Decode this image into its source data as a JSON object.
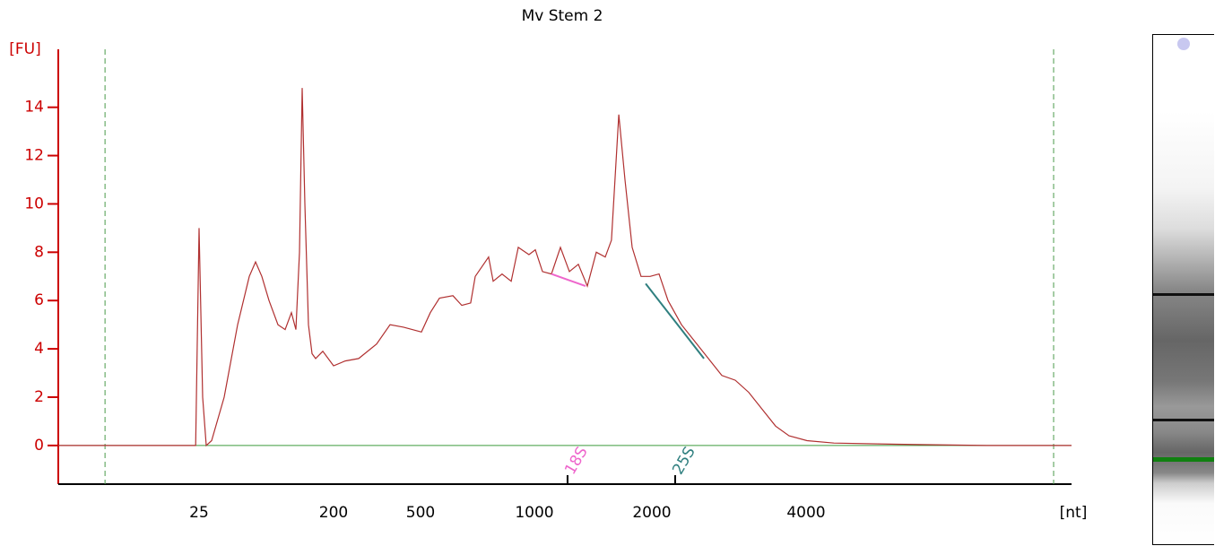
{
  "chart_data": {
    "type": "line",
    "title": "Mv Stem 2",
    "y_label": "[FU]",
    "x_label": "[nt]",
    "x_scale": "piecewise",
    "x": [
      0,
      5.6,
      13.5,
      23.9,
      24.4,
      25,
      29.7,
      34.3,
      41.3,
      57.7,
      75.2,
      90.3,
      98.5,
      106.7,
      116,
      127.7,
      137,
      145.2,
      151,
      155.7,
      159.2,
      162.7,
      167.3,
      172,
      176.7,
      186,
      200,
      240.2,
      286.6,
      348.5,
      394.8,
      441.2,
      504,
      543,
      583,
      642,
      681,
      720,
      740,
      799,
      819,
      858,
      898,
      929,
      976,
      1008,
      1069,
      1145,
      1221,
      1298,
      1374,
      1450,
      1527,
      1603,
      1656,
      1718,
      1771,
      1832,
      1908,
      1985,
      2093,
      2209,
      2384,
      2558,
      2733,
      2907,
      3081,
      3256,
      3430,
      3605,
      3779,
      4020,
      4628,
      6047,
      8074,
      10000
    ],
    "values": [
      0,
      0,
      0,
      0,
      0,
      9,
      2,
      0,
      0.2,
      2,
      5,
      7,
      7.6,
      7,
      6,
      5,
      4.8,
      5.5,
      4.8,
      8,
      14.8,
      10,
      5,
      3.8,
      3.6,
      3.9,
      3.3,
      3.5,
      3.6,
      4.2,
      5,
      4.9,
      4.7,
      5.5,
      6.1,
      6.2,
      5.8,
      5.9,
      7,
      7.8,
      6.8,
      7.1,
      6.8,
      8.2,
      7.9,
      8.1,
      7.2,
      7.1,
      8.2,
      7.2,
      7.5,
      6.6,
      8,
      7.8,
      8.5,
      13.7,
      11,
      8.2,
      7,
      7,
      7.1,
      6,
      5,
      4.3,
      3.6,
      2.9,
      2.7,
      2.2,
      1.5,
      0.8,
      0.4,
      0.2,
      0.1,
      0.05,
      0,
      0
    ],
    "color": "#b03030",
    "xlim": [
      0,
      10000
    ],
    "xticks": [
      25,
      200,
      500,
      1000,
      2000,
      4000
    ],
    "ylim": [
      -1.6,
      16.4
    ],
    "yticks": [
      0,
      2,
      4,
      6,
      8,
      10,
      12,
      14
    ],
    "axis_color": "#cc0000",
    "window": [
      8.3,
      9595
    ],
    "annotations": [
      {
        "label": "18S",
        "x": 1282,
        "color": "#ee66cc",
        "x1": 1145,
        "y1": 7.1,
        "x2": 1435,
        "y2": 6.6
      },
      {
        "label": "25S",
        "x": 2302,
        "color": "#2f7f7f",
        "x1": 1947,
        "y1": 6.7,
        "x2": 2675,
        "y2": 3.6
      }
    ]
  }
}
